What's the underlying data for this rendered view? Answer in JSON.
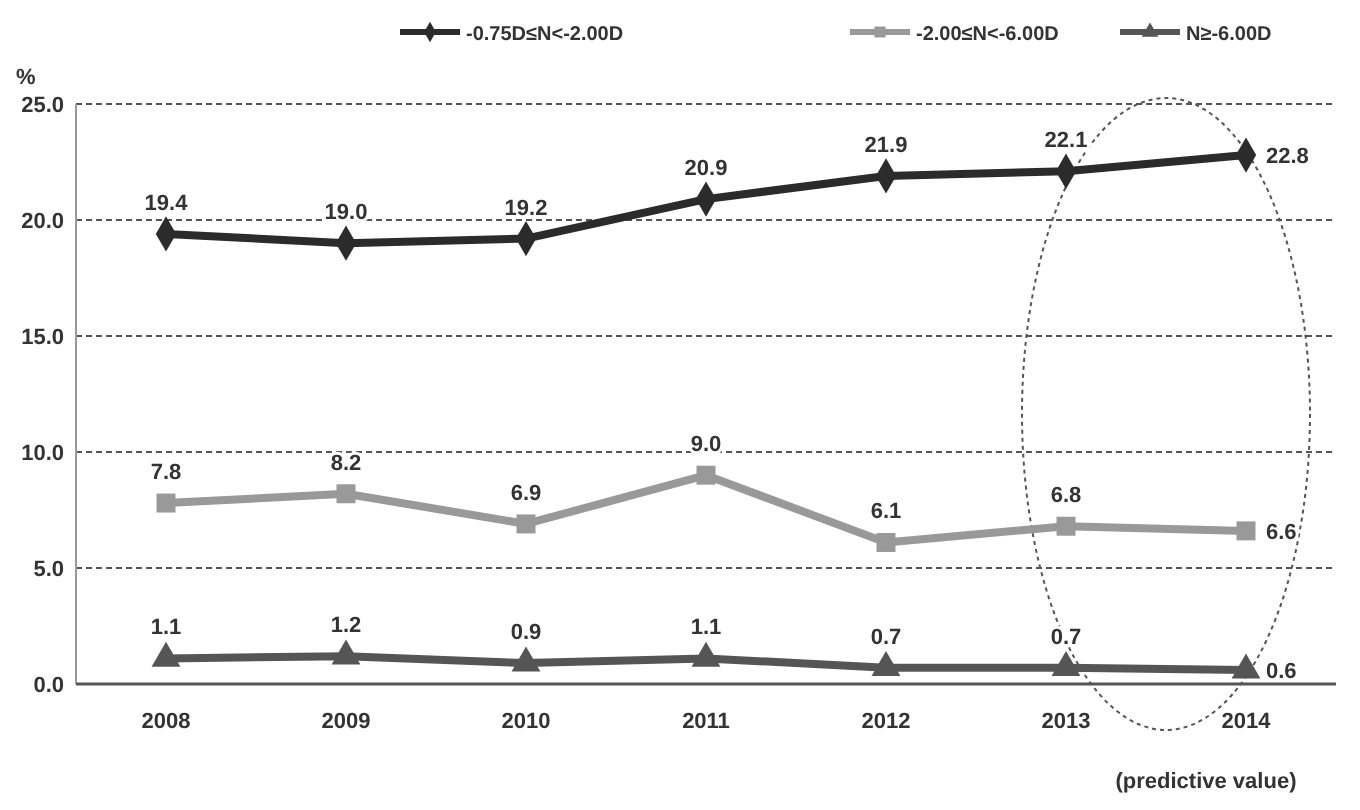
{
  "chart_data": {
    "type": "line",
    "ylabel": "%",
    "categories": [
      "2008",
      "2009",
      "2010",
      "2011",
      "2012",
      "2013",
      "2014"
    ],
    "series": [
      {
        "name": "-0.75D≤N<-2.00D",
        "color": "#2b2b2b",
        "marker": "diamond",
        "values": [
          19.4,
          19.0,
          19.2,
          20.9,
          21.9,
          22.1,
          22.8
        ],
        "value_labels": [
          "19.4",
          "19.0",
          "19.2",
          "20.9",
          "21.9",
          "22.1",
          "22.8"
        ]
      },
      {
        "name": "-2.00≤N<-6.00D",
        "color": "#999999",
        "marker": "square",
        "values": [
          7.8,
          8.2,
          6.9,
          9.0,
          6.1,
          6.8,
          6.6
        ],
        "value_labels": [
          "7.8",
          "8.2",
          "6.9",
          "9.0",
          "6.1",
          "6.8",
          "6.6"
        ]
      },
      {
        "name": "N≥-6.00D",
        "color": "#555555",
        "marker": "triangle",
        "values": [
          1.1,
          1.2,
          0.9,
          1.1,
          0.7,
          0.7,
          0.6
        ],
        "value_labels": [
          "1.1",
          "1.2",
          "0.9",
          "1.1",
          "0.7",
          "0.7",
          "0.6"
        ]
      }
    ],
    "ylim": [
      0,
      25
    ],
    "yticks": [
      {
        "value": 0,
        "label": "0.0"
      },
      {
        "value": 5,
        "label": "5.0"
      },
      {
        "value": 10,
        "label": "10.0"
      },
      {
        "value": 15,
        "label": "15.0"
      },
      {
        "value": 20,
        "label": "20.0"
      },
      {
        "value": 25,
        "label": "25.0"
      }
    ],
    "grid": "y",
    "legend": "top",
    "line_style": "solid",
    "annotations": [
      "(predictive value)"
    ]
  }
}
